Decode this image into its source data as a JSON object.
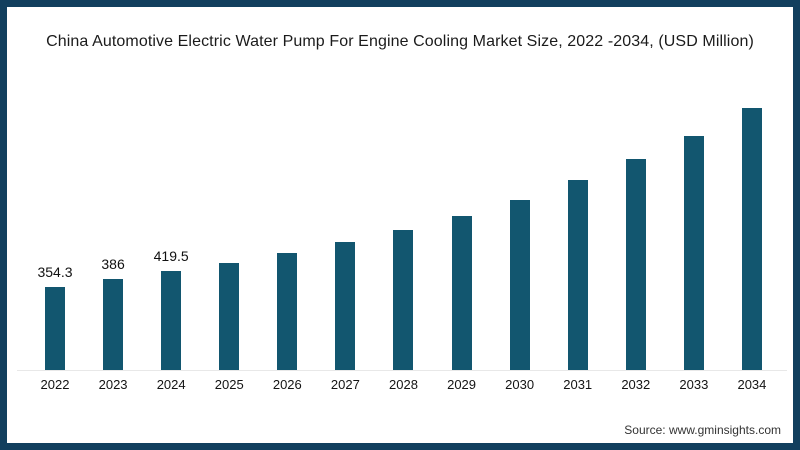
{
  "window": {
    "background": "#ffffff",
    "border_color": "#123F5E"
  },
  "chart_data": {
    "type": "bar",
    "title": "China Automotive Electric Water Pump For Engine Cooling Market Size, 2022 -2034, (USD Million)",
    "categories": [
      "2022",
      "2023",
      "2024",
      "2025",
      "2026",
      "2027",
      "2028",
      "2029",
      "2030",
      "2031",
      "2032",
      "2033",
      "2034"
    ],
    "values": [
      354.3,
      386,
      419.5,
      457,
      500,
      545,
      595,
      656,
      725,
      807,
      898,
      997,
      1116
    ],
    "bar_labels": [
      "354.3",
      "386",
      "419.5",
      "",
      "",
      "",
      "",
      "",
      "",
      "",
      "",
      "",
      ""
    ],
    "xlabel": "",
    "ylabel": "",
    "ylim": [
      0,
      1200
    ],
    "grid": false,
    "legend": false,
    "bar_color": "#12566F",
    "label_color": "#111111",
    "tick_color": "#141414"
  },
  "footer": {
    "source_text": "Source: www.gminsights.com"
  }
}
